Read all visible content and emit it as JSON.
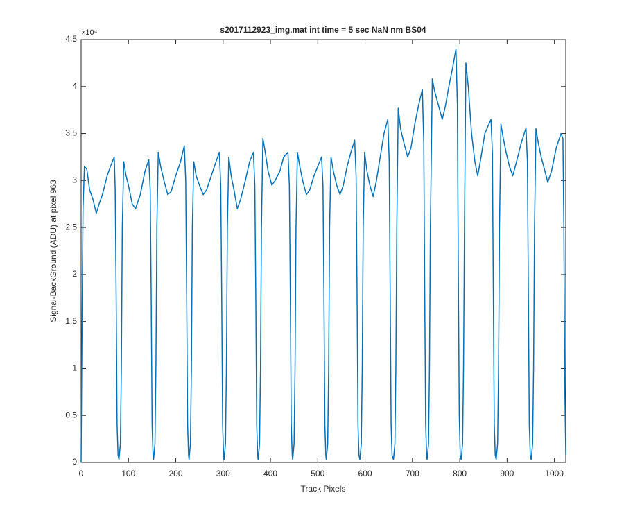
{
  "chart_data": {
    "type": "line",
    "title": "s2017112923_img.mat int time = 5 sec  NaN nm BS04",
    "x_label": "Track Pixels",
    "y_label": "Signal-BackGround (ADU) at pixel 963",
    "y_exponent": "×10⁴",
    "xlim": [
      0,
      1024
    ],
    "ylim": [
      0,
      45000
    ],
    "xticks": [
      0,
      100,
      200,
      300,
      400,
      500,
      600,
      700,
      800,
      900,
      1000
    ],
    "yticks": [
      0,
      {
        "value": 5000,
        "label": "0.5"
      },
      {
        "value": 10000,
        "label": "1"
      },
      {
        "value": 15000,
        "label": "1.5"
      },
      {
        "value": 20000,
        "label": "2"
      },
      {
        "value": 25000,
        "label": "2.5"
      },
      {
        "value": 30000,
        "label": "3"
      },
      {
        "value": 35000,
        "label": "3.5"
      },
      {
        "value": 40000,
        "label": "4"
      },
      {
        "value": 45000,
        "label": "4.5"
      }
    ],
    "grid": false,
    "series": [
      {
        "color": "#0072bd",
        "x": [
          0,
          2,
          4,
          7,
          12,
          18,
          25,
          32,
          38,
          45,
          55,
          62,
          70,
          72,
          74,
          76,
          78,
          80,
          83,
          85,
          87,
          90,
          95,
          100,
          108,
          115,
          125,
          135,
          143,
          146,
          148,
          150,
          152,
          153,
          156,
          158,
          160,
          163,
          168,
          175,
          183,
          190,
          200,
          210,
          218,
          221,
          223,
          225,
          227,
          228,
          231,
          233,
          235,
          238,
          243,
          250,
          258,
          265,
          275,
          285,
          292,
          295,
          297,
          299,
          301,
          302,
          305,
          307,
          309,
          312,
          317,
          323,
          330,
          337,
          347,
          356,
          364,
          367,
          369,
          371,
          373,
          374,
          377,
          379,
          381,
          384,
          389,
          395,
          403,
          410,
          420,
          428,
          437,
          440,
          442,
          444,
          446,
          447,
          450,
          452,
          454,
          457,
          462,
          468,
          476,
          483,
          492,
          500,
          508,
          511,
          513,
          515,
          517,
          518,
          521,
          523,
          525,
          528,
          533,
          540,
          547,
          554,
          562,
          570,
          578,
          581,
          583,
          585,
          587,
          589,
          592,
          594,
          596,
          599,
          604,
          610,
          617,
          624,
          632,
          640,
          648,
          651,
          653,
          655,
          657,
          660,
          663,
          665,
          667,
          670,
          675,
          682,
          690,
          697,
          705,
          713,
          721,
          724,
          726,
          728,
          730,
          731,
          734,
          736,
          738,
          742,
          747,
          755,
          763,
          770,
          777,
          785,
          792,
          795,
          797,
          799,
          801,
          803,
          806,
          808,
          810,
          813,
          818,
          825,
          832,
          838,
          845,
          853,
          866,
          869,
          871,
          873,
          875,
          877,
          880,
          882,
          884,
          887,
          892,
          898,
          905,
          912,
          920,
          930,
          940,
          943,
          945,
          947,
          949,
          951,
          954,
          956,
          958,
          961,
          966,
          972,
          980,
          986,
          994,
          1004,
          1014,
          1018,
          1020,
          1022,
          1024
        ],
        "values": [
          0,
          15000,
          27000,
          31500,
          31200,
          29000,
          28000,
          26500,
          27500,
          28500,
          30500,
          31500,
          32500,
          29000,
          18000,
          4000,
          800,
          300,
          2000,
          10000,
          25000,
          32000,
          30500,
          29500,
          27500,
          27000,
          28500,
          31000,
          32200,
          29000,
          18000,
          4000,
          800,
          300,
          2000,
          10000,
          25000,
          33000,
          31500,
          30000,
          28500,
          28800,
          30500,
          32000,
          33700,
          30000,
          18000,
          4000,
          800,
          300,
          2000,
          10000,
          25000,
          32000,
          30500,
          29500,
          28500,
          29000,
          30500,
          32000,
          33000,
          29500,
          18000,
          4000,
          800,
          300,
          2000,
          10000,
          25000,
          32500,
          30500,
          29000,
          27000,
          28000,
          30000,
          32000,
          33000,
          29500,
          18000,
          4000,
          800,
          300,
          2000,
          10000,
          25000,
          34500,
          33000,
          31000,
          29500,
          30000,
          31000,
          32500,
          33000,
          29500,
          18000,
          4000,
          800,
          300,
          2000,
          10000,
          25000,
          33000,
          31500,
          30000,
          28500,
          29000,
          30500,
          31500,
          32500,
          29500,
          18000,
          4000,
          800,
          300,
          2000,
          10000,
          25000,
          32500,
          31000,
          29500,
          28500,
          29500,
          31500,
          33000,
          34300,
          30500,
          18000,
          4000,
          800,
          300,
          2000,
          10000,
          25000,
          33000,
          31000,
          29500,
          28300,
          30000,
          32500,
          35000,
          36500,
          32000,
          18000,
          4000,
          800,
          300,
          2000,
          10000,
          25000,
          37700,
          35500,
          34000,
          32500,
          33500,
          36000,
          38000,
          39700,
          34000,
          18000,
          4000,
          800,
          300,
          2000,
          10000,
          25000,
          40800,
          39500,
          38000,
          36500,
          38000,
          40000,
          42000,
          44000,
          38000,
          20000,
          5000,
          800,
          300,
          2000,
          10000,
          25000,
          42500,
          40000,
          35000,
          32000,
          30500,
          32500,
          35000,
          36500,
          33000,
          18000,
          4000,
          800,
          300,
          2000,
          10000,
          25000,
          36000,
          34500,
          33000,
          31500,
          30500,
          32000,
          34000,
          35600,
          32000,
          18000,
          4000,
          800,
          300,
          2000,
          10000,
          25000,
          35500,
          34000,
          32500,
          31000,
          29800,
          31000,
          33500,
          35000,
          34500,
          25000,
          8000,
          800
        ]
      }
    ]
  }
}
